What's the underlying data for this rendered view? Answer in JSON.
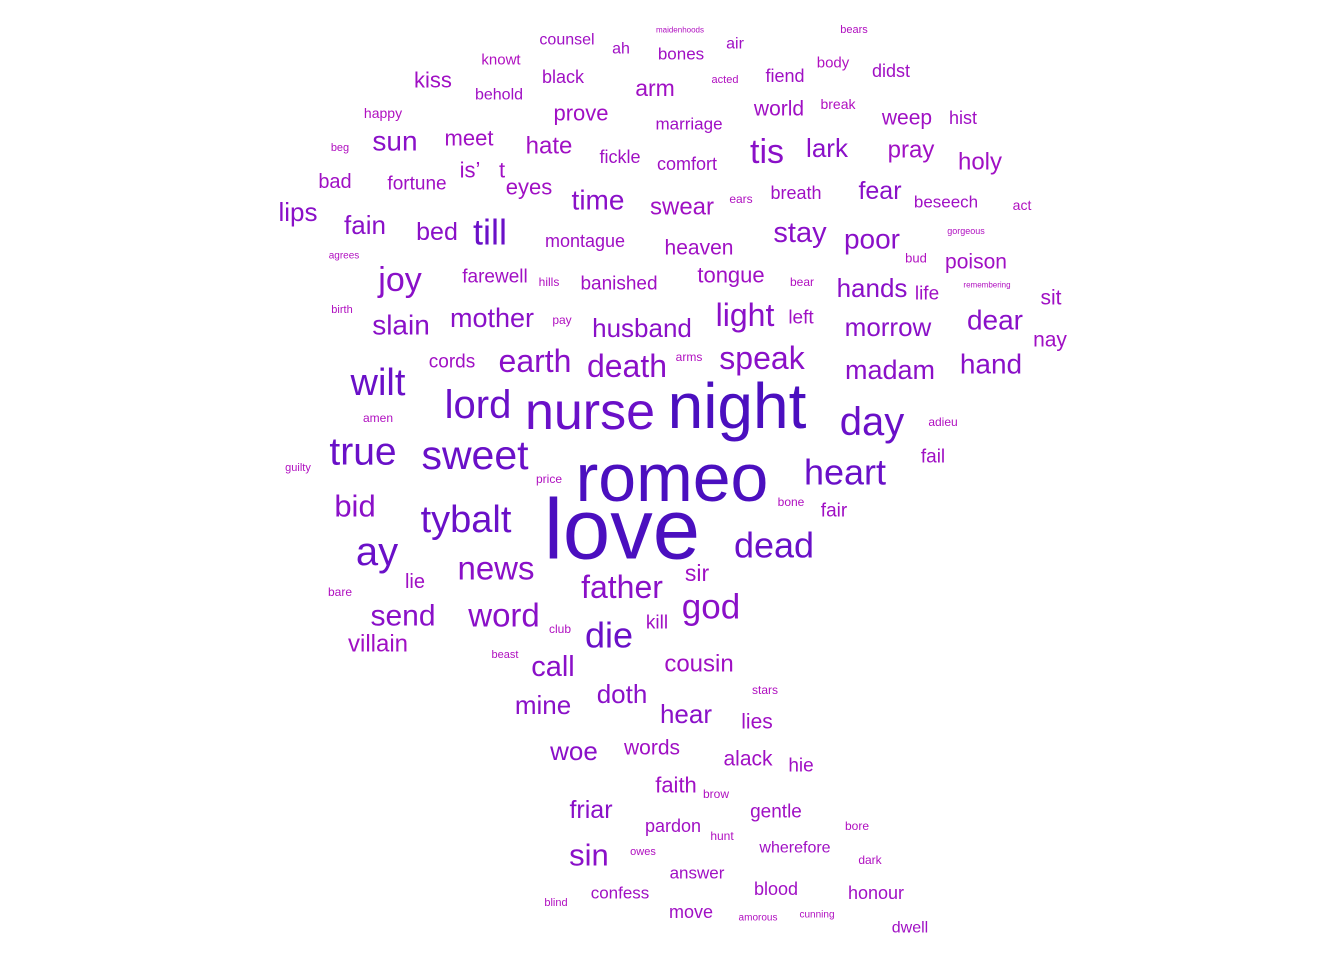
{
  "wordcloud": {
    "colors": {
      "largest": "#4b0fbf",
      "large": "#6a10c8",
      "medium": "#8a10c8",
      "small": "#a010c4",
      "smallest": "#b010c0"
    },
    "words": [
      {
        "text": "love",
        "weight": 85
      },
      {
        "text": "romeo",
        "weight": 68
      },
      {
        "text": "night",
        "weight": 64
      },
      {
        "text": "nurse",
        "weight": 52
      },
      {
        "text": "day",
        "weight": 40
      },
      {
        "text": "sweet",
        "weight": 41
      },
      {
        "text": "lord",
        "weight": 40
      },
      {
        "text": "true",
        "weight": 39
      },
      {
        "text": "wilt",
        "weight": 38
      },
      {
        "text": "ay",
        "weight": 40
      },
      {
        "text": "heart",
        "weight": 36
      },
      {
        "text": "tybalt",
        "weight": 38
      },
      {
        "text": "dead",
        "weight": 36
      },
      {
        "text": "till",
        "weight": 36
      },
      {
        "text": "die",
        "weight": 36
      },
      {
        "text": "god",
        "weight": 35
      },
      {
        "text": "speak",
        "weight": 32
      },
      {
        "text": "death",
        "weight": 32
      },
      {
        "text": "earth",
        "weight": 32
      },
      {
        "text": "light",
        "weight": 32
      },
      {
        "text": "news",
        "weight": 33
      },
      {
        "text": "word",
        "weight": 33
      },
      {
        "text": "father",
        "weight": 32
      },
      {
        "text": "joy",
        "weight": 34
      },
      {
        "text": "tis",
        "weight": 34
      },
      {
        "text": "bid",
        "weight": 31
      },
      {
        "text": "send",
        "weight": 30
      },
      {
        "text": "sin",
        "weight": 31
      },
      {
        "text": "stay",
        "weight": 29
      },
      {
        "text": "poor",
        "weight": 28
      },
      {
        "text": "dear",
        "weight": 28
      },
      {
        "text": "hand",
        "weight": 28
      },
      {
        "text": "madam",
        "weight": 27
      },
      {
        "text": "morrow",
        "weight": 26
      },
      {
        "text": "slain",
        "weight": 28
      },
      {
        "text": "mother",
        "weight": 27
      },
      {
        "text": "husband",
        "weight": 26
      },
      {
        "text": "call",
        "weight": 29
      },
      {
        "text": "time",
        "weight": 28
      },
      {
        "text": "sun",
        "weight": 28
      },
      {
        "text": "lips",
        "weight": 26
      },
      {
        "text": "fain",
        "weight": 26
      },
      {
        "text": "bed",
        "weight": 25
      },
      {
        "text": "hands",
        "weight": 26
      },
      {
        "text": "lark",
        "weight": 26
      },
      {
        "text": "fear",
        "weight": 25
      },
      {
        "text": "swear",
        "weight": 24
      },
      {
        "text": "pray",
        "weight": 24
      },
      {
        "text": "holy",
        "weight": 24
      },
      {
        "text": "hate",
        "weight": 24
      },
      {
        "text": "cousin",
        "weight": 24
      },
      {
        "text": "hear",
        "weight": 26
      },
      {
        "text": "doth",
        "weight": 26
      },
      {
        "text": "mine",
        "weight": 26
      },
      {
        "text": "woe",
        "weight": 26
      },
      {
        "text": "friar",
        "weight": 25
      },
      {
        "text": "villain",
        "weight": 24
      },
      {
        "text": "sir",
        "weight": 23
      },
      {
        "text": "arm",
        "weight": 23
      },
      {
        "text": "prove",
        "weight": 22
      },
      {
        "text": "meet",
        "weight": 22
      },
      {
        "text": "eyes",
        "weight": 22
      },
      {
        "text": "kiss",
        "weight": 22
      },
      {
        "text": "is’",
        "weight": 22
      },
      {
        "text": "t",
        "weight": 22
      },
      {
        "text": "heaven",
        "weight": 21
      },
      {
        "text": "tongue",
        "weight": 22
      },
      {
        "text": "poison",
        "weight": 21
      },
      {
        "text": "sit",
        "weight": 21
      },
      {
        "text": "nay",
        "weight": 21
      },
      {
        "text": "world",
        "weight": 21
      },
      {
        "text": "weep",
        "weight": 21
      },
      {
        "text": "faith",
        "weight": 22
      },
      {
        "text": "words",
        "weight": 21
      },
      {
        "text": "alack",
        "weight": 21
      },
      {
        "text": "lies",
        "weight": 21
      },
      {
        "text": "bad",
        "weight": 20
      },
      {
        "text": "fortune",
        "weight": 19
      },
      {
        "text": "farewell",
        "weight": 19
      },
      {
        "text": "banished",
        "weight": 19
      },
      {
        "text": "montague",
        "weight": 18
      },
      {
        "text": "cords",
        "weight": 19
      },
      {
        "text": "left",
        "weight": 19
      },
      {
        "text": "life",
        "weight": 19
      },
      {
        "text": "lie",
        "weight": 20
      },
      {
        "text": "fail",
        "weight": 19
      },
      {
        "text": "fair",
        "weight": 19
      },
      {
        "text": "kill",
        "weight": 19
      },
      {
        "text": "hie",
        "weight": 19
      },
      {
        "text": "gentle",
        "weight": 19
      },
      {
        "text": "pardon",
        "weight": 18
      },
      {
        "text": "black",
        "weight": 18
      },
      {
        "text": "fiend",
        "weight": 18
      },
      {
        "text": "didst",
        "weight": 18
      },
      {
        "text": "hist",
        "weight": 18
      },
      {
        "text": "fickle",
        "weight": 18
      },
      {
        "text": "comfort",
        "weight": 18
      },
      {
        "text": "breath",
        "weight": 18
      },
      {
        "text": "beseech",
        "weight": 17
      },
      {
        "text": "marriage",
        "weight": 17
      },
      {
        "text": "bones",
        "weight": 17
      },
      {
        "text": "counsel",
        "weight": 16
      },
      {
        "text": "ah",
        "weight": 16
      },
      {
        "text": "air",
        "weight": 16
      },
      {
        "text": "behold",
        "weight": 16
      },
      {
        "text": "answer",
        "weight": 17
      },
      {
        "text": "blood",
        "weight": 18
      },
      {
        "text": "honour",
        "weight": 18
      },
      {
        "text": "confess",
        "weight": 17
      },
      {
        "text": "move",
        "weight": 18
      },
      {
        "text": "wherefore",
        "weight": 16
      },
      {
        "text": "dwell",
        "weight": 16
      },
      {
        "text": "knowt",
        "weight": 15
      },
      {
        "text": "happy",
        "weight": 14
      },
      {
        "text": "body",
        "weight": 15
      },
      {
        "text": "act",
        "weight": 14
      },
      {
        "text": "break",
        "weight": 14
      },
      {
        "text": "bear",
        "weight": 12
      },
      {
        "text": "bud",
        "weight": 13
      },
      {
        "text": "hills",
        "weight": 12
      },
      {
        "text": "pay",
        "weight": 12
      },
      {
        "text": "arms",
        "weight": 12
      },
      {
        "text": "amen",
        "weight": 12
      },
      {
        "text": "adieu",
        "weight": 12
      },
      {
        "text": "price",
        "weight": 12
      },
      {
        "text": "bone",
        "weight": 12
      },
      {
        "text": "club",
        "weight": 12
      },
      {
        "text": "bare",
        "weight": 12
      },
      {
        "text": "brow",
        "weight": 12
      },
      {
        "text": "hunt",
        "weight": 12
      },
      {
        "text": "bore",
        "weight": 12
      },
      {
        "text": "stars",
        "weight": 12
      },
      {
        "text": "dark",
        "weight": 12
      },
      {
        "text": "ears",
        "weight": 12
      },
      {
        "text": "acted",
        "weight": 11
      },
      {
        "text": "beg",
        "weight": 11
      },
      {
        "text": "birth",
        "weight": 11
      },
      {
        "text": "guilty",
        "weight": 11
      },
      {
        "text": "blind",
        "weight": 11
      },
      {
        "text": "owes",
        "weight": 11
      },
      {
        "text": "beast",
        "weight": 11
      },
      {
        "text": "bears",
        "weight": 11
      },
      {
        "text": "agrees",
        "weight": 10
      },
      {
        "text": "gorgeous",
        "weight": 9
      },
      {
        "text": "remembering",
        "weight": 8
      },
      {
        "text": "maidenhoods",
        "weight": 8
      },
      {
        "text": "amorous",
        "weight": 10
      },
      {
        "text": "cunning",
        "weight": 10
      }
    ]
  }
}
